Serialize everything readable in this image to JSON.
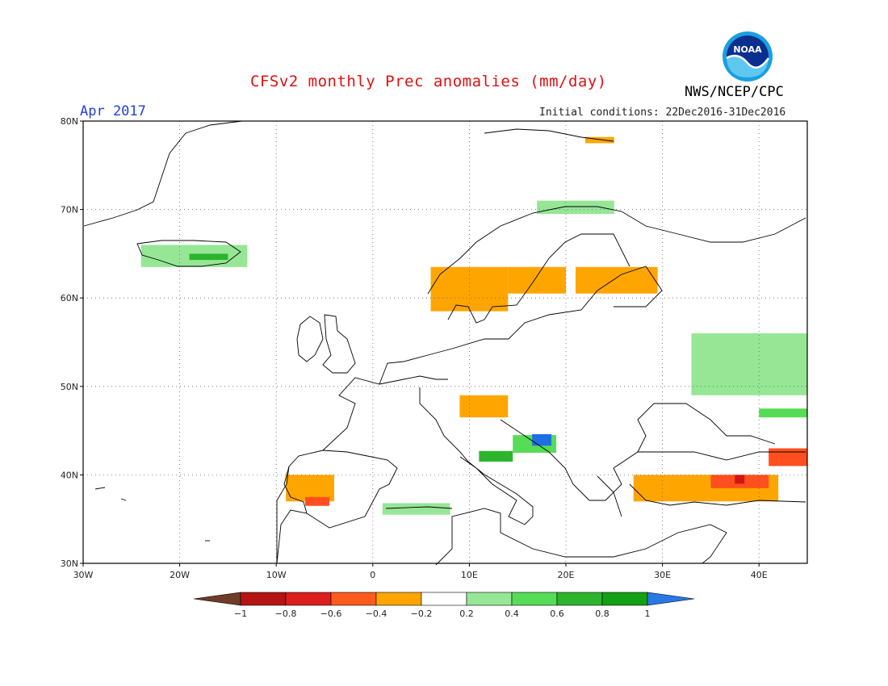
{
  "header": {
    "title": "CFSv2 monthly Prec anomalies (mm/day)",
    "period": "Apr 2017",
    "initial_conditions": "Initial conditions: 22Dec2016-31Dec2016",
    "org": "NWS/NCEP/CPC",
    "logo_text": "NOAA"
  },
  "map": {
    "lon_range": [
      -30,
      45
    ],
    "lat_range": [
      30,
      80
    ],
    "gridlines": "dotted",
    "lat_ticks": [
      {
        "v": 80,
        "label": "80N"
      },
      {
        "v": 70,
        "label": "70N"
      },
      {
        "v": 60,
        "label": "60N"
      },
      {
        "v": 50,
        "label": "50N"
      },
      {
        "v": 40,
        "label": "40N"
      },
      {
        "v": 30,
        "label": "30N"
      }
    ],
    "lon_ticks": [
      {
        "v": -30,
        "label": "30W"
      },
      {
        "v": -20,
        "label": "20W"
      },
      {
        "v": -10,
        "label": "10W"
      },
      {
        "v": 0,
        "label": "0"
      },
      {
        "v": 10,
        "label": "10E"
      },
      {
        "v": 20,
        "label": "20E"
      },
      {
        "v": 30,
        "label": "30E"
      },
      {
        "v": 40,
        "label": "40E"
      }
    ],
    "anomaly_regions": [
      {
        "name": "iceland",
        "cls": "0.2-0.4",
        "color": "#96e696",
        "lon": [
          -24,
          -13
        ],
        "lat": [
          63.5,
          66
        ]
      },
      {
        "name": "iceland-core",
        "cls": "0.6-0.8",
        "color": "#2db42d",
        "lon": [
          -19,
          -15
        ],
        "lat": [
          64.3,
          65
        ]
      },
      {
        "name": "norway-south",
        "cls": "-0.4--0.2",
        "color": "#ffa500",
        "lon": [
          6,
          14
        ],
        "lat": [
          58.5,
          63.5
        ]
      },
      {
        "name": "sweden-central",
        "cls": "-0.4--0.2",
        "color": "#ffa500",
        "lon": [
          14,
          20
        ],
        "lat": [
          60.5,
          63.5
        ]
      },
      {
        "name": "finland",
        "cls": "-0.4--0.2",
        "color": "#ffa500",
        "lon": [
          21,
          29.5
        ],
        "lat": [
          60.5,
          63.5
        ]
      },
      {
        "name": "north-norway",
        "cls": "0.2-0.4",
        "color": "#96e696",
        "lon": [
          17,
          25
        ],
        "lat": [
          69.5,
          71
        ]
      },
      {
        "name": "svalbard",
        "cls": "-0.4--0.2",
        "color": "#ffa500",
        "lon": [
          22,
          25
        ],
        "lat": [
          77.5,
          78.2
        ]
      },
      {
        "name": "russia-west",
        "cls": "0.2-0.4",
        "color": "#96e696",
        "lon": [
          33,
          45
        ],
        "lat": [
          49,
          56
        ]
      },
      {
        "name": "russia-southwest",
        "cls": "0.4-0.6",
        "color": "#56dc56",
        "lon": [
          40,
          45
        ],
        "lat": [
          46.5,
          47.5
        ]
      },
      {
        "name": "alps",
        "cls": "-0.4--0.2",
        "color": "#ffa500",
        "lon": [
          9,
          14
        ],
        "lat": [
          46.5,
          49
        ]
      },
      {
        "name": "italy-central",
        "cls": "0.6-0.8",
        "color": "#2db42d",
        "lon": [
          11,
          14.5
        ],
        "lat": [
          41.5,
          42.7
        ]
      },
      {
        "name": "balkans-west",
        "cls": "0.4-0.6",
        "color": "#56dc56",
        "lon": [
          14.5,
          19
        ],
        "lat": [
          42.5,
          44.5
        ]
      },
      {
        "name": "bosnia",
        "cls": ">1",
        "color": "#1e6ee6",
        "lon": [
          16.5,
          18.5
        ],
        "lat": [
          43.3,
          44.6
        ]
      },
      {
        "name": "iberia-west",
        "cls": "-0.4--0.2",
        "color": "#ffa500",
        "lon": [
          -9,
          -4
        ],
        "lat": [
          37,
          40
        ]
      },
      {
        "name": "spain-southwest",
        "cls": "-0.6--0.4",
        "color": "#ff4f1e",
        "lon": [
          -7,
          -4.5
        ],
        "lat": [
          36.5,
          37.5
        ]
      },
      {
        "name": "north-africa",
        "cls": "0.2-0.4",
        "color": "#96e696",
        "lon": [
          1,
          8
        ],
        "lat": [
          35.5,
          36.8
        ]
      },
      {
        "name": "turkey",
        "cls": "-0.4--0.2",
        "color": "#ffa500",
        "lon": [
          27,
          42
        ],
        "lat": [
          37,
          40
        ]
      },
      {
        "name": "turkey-east",
        "cls": "-0.6--0.4",
        "color": "#ff4f1e",
        "lon": [
          35,
          41
        ],
        "lat": [
          38.5,
          40
        ]
      },
      {
        "name": "turkey-core",
        "cls": "-0.8--0.6",
        "color": "#d21414",
        "lon": [
          37.5,
          38.5
        ],
        "lat": [
          39,
          40
        ]
      },
      {
        "name": "caucasus",
        "cls": "-0.6--0.4",
        "color": "#ff4f1e",
        "lon": [
          41,
          45
        ],
        "lat": [
          41,
          43
        ]
      }
    ]
  },
  "legend": {
    "under_color": "#6e3c28",
    "over_color": "#2878e6",
    "boxes": [
      "#b41414",
      "#dc1e1e",
      "#ff5a1e",
      "#ffa500",
      "#ffffff",
      "#96e696",
      "#56dc56",
      "#2db42d",
      "#14a014"
    ],
    "labels": [
      "-1",
      "-0.8",
      "-0.6",
      "-0.4",
      "-0.2",
      "0.2",
      "0.4",
      "0.6",
      "0.8",
      "1"
    ]
  }
}
